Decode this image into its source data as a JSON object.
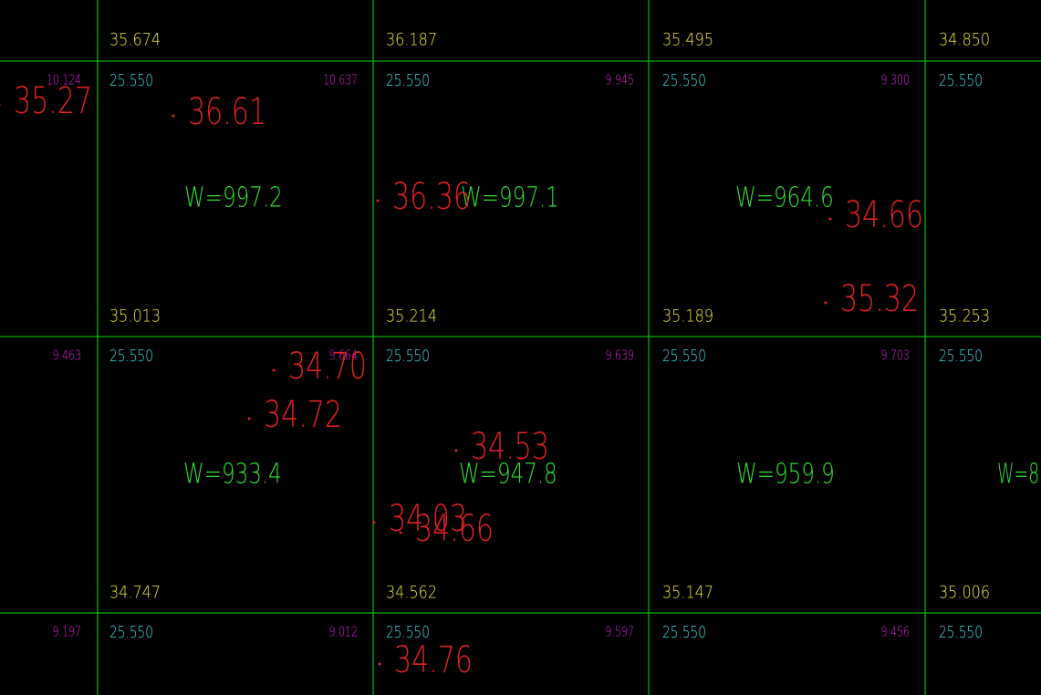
{
  "grid": {
    "elevations": [
      "35.674",
      "36.187",
      "35.495",
      "34.850",
      "35.013",
      "35.214",
      "35.189",
      "35.253",
      "34.747",
      "34.562",
      "35.147",
      "35.006"
    ],
    "design_levels": [
      "25.550",
      "25.550",
      "25.550",
      "25.550",
      "25.550",
      "25.550",
      "25.550",
      "25.550",
      "25.550",
      "25.550",
      "25.550",
      "25.550"
    ],
    "cut_depths": [
      "10.124",
      "10.637",
      "9.945",
      "9.300",
      "9.463",
      "9.664",
      "9.639",
      "9.703",
      "9.197",
      "9.012",
      "9.597",
      "9.456"
    ],
    "weights": [
      "W=997.2",
      "W=997.1",
      "W=964.6",
      "W=933.4",
      "W=947.8",
      "W=959.9",
      "W=8"
    ],
    "spot_levels": [
      "35.27",
      "36.61",
      "36.36",
      "34.66",
      "35.32",
      "34.70",
      "34.72",
      "34.53",
      "34.03",
      "34.66",
      "34.76"
    ]
  }
}
